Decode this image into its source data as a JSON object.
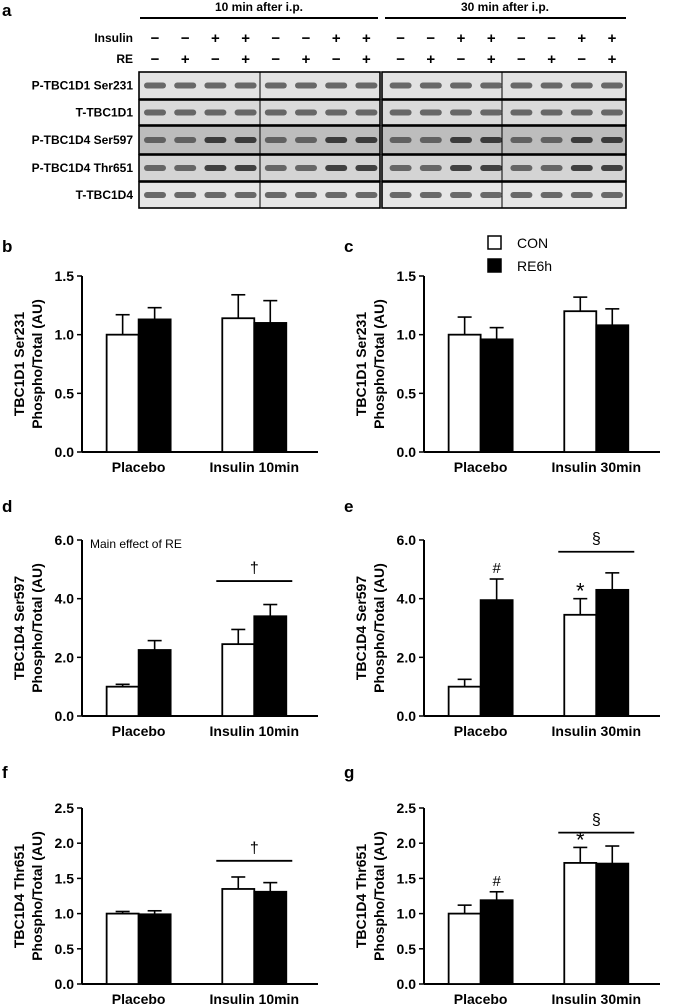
{
  "figure": {
    "panel_letters": [
      "a",
      "b",
      "c",
      "d",
      "e",
      "f",
      "g"
    ],
    "blot": {
      "groups": [
        {
          "label": "10 min after i.p."
        },
        {
          "label": "30 min after i.p."
        }
      ],
      "row_labels": [
        "Insulin",
        "RE"
      ],
      "insulin_signs": [
        "−",
        "−",
        "+",
        "+",
        "−",
        "−",
        "+",
        "+",
        "−",
        "−",
        "+",
        "+",
        "−",
        "−",
        "+",
        "+"
      ],
      "re_signs": [
        "−",
        "+",
        "−",
        "+",
        "−",
        "+",
        "−",
        "+",
        "−",
        "+",
        "−",
        "+",
        "−",
        "+",
        "−",
        "+"
      ],
      "bands": [
        {
          "label": "P-TBC1D1 Ser231",
          "bg": "#e2e2e2"
        },
        {
          "label": "T-TBC1D1",
          "bg": "#dadada"
        },
        {
          "label": "P-TBC1D4 Ser597",
          "bg": "#bdbdbd"
        },
        {
          "label": "P-TBC1D4 Thr651",
          "bg": "#d4d4d4"
        },
        {
          "label": "T-TBC1D4",
          "bg": "#e6e6e6"
        }
      ]
    },
    "legend": [
      {
        "label": "CON",
        "color": "#ffffff"
      },
      {
        "label": "RE6h",
        "color": "#000000"
      }
    ]
  },
  "chart_data": [
    {
      "type": "bar",
      "panel": "b",
      "ylabel": [
        "TBC1D1 Ser231",
        "Phospho/Total (AU)"
      ],
      "ylim": [
        0,
        1.5
      ],
      "yticks": [
        "0.0",
        "0.5",
        "1.0",
        "1.5"
      ],
      "ytick_values": [
        0,
        0.5,
        1.0,
        1.5
      ],
      "categories": [
        "Placebo",
        "Insulin 10min"
      ],
      "series": [
        {
          "name": "CON",
          "values": [
            1.0,
            1.14
          ],
          "errors": [
            0.17,
            0.2
          ]
        },
        {
          "name": "RE6h",
          "values": [
            1.13,
            1.1
          ],
          "errors": [
            0.1,
            0.19
          ]
        }
      ],
      "bar_marks": [],
      "brackets": []
    },
    {
      "type": "bar",
      "panel": "c",
      "ylabel": [
        "TBC1D1 Ser231",
        "Phospho/Total (AU)"
      ],
      "ylim": [
        0,
        1.5
      ],
      "yticks": [
        "0.0",
        "0.5",
        "1.0",
        "1.5"
      ],
      "ytick_values": [
        0,
        0.5,
        1.0,
        1.5
      ],
      "categories": [
        "Placebo",
        "Insulin 30min"
      ],
      "series": [
        {
          "name": "CON",
          "values": [
            1.0,
            1.2
          ],
          "errors": [
            0.15,
            0.12
          ]
        },
        {
          "name": "RE6h",
          "values": [
            0.96,
            1.08
          ],
          "errors": [
            0.1,
            0.14
          ]
        }
      ],
      "bar_marks": [],
      "brackets": []
    },
    {
      "type": "bar",
      "panel": "d",
      "ylabel": [
        "TBC1D4 Ser597",
        "Phospho/Total (AU)"
      ],
      "ylim": [
        0,
        6.0
      ],
      "yticks": [
        "0.0",
        "2.0",
        "4.0",
        "6.0"
      ],
      "ytick_values": [
        0,
        2,
        4,
        6
      ],
      "categories": [
        "Placebo",
        "Insulin 10min"
      ],
      "series": [
        {
          "name": "CON",
          "values": [
            1.0,
            2.45
          ],
          "errors": [
            0.08,
            0.5
          ]
        },
        {
          "name": "RE6h",
          "values": [
            2.25,
            3.4
          ],
          "errors": [
            0.32,
            0.4
          ]
        }
      ],
      "annotation": "Main effect of RE",
      "bar_marks": [],
      "brackets": [
        {
          "group": 1,
          "symbol": "†",
          "value": 4.6
        }
      ]
    },
    {
      "type": "bar",
      "panel": "e",
      "ylabel": [
        "TBC1D4 Ser597",
        "Phospho/Total (AU)"
      ],
      "ylim": [
        0,
        6.0
      ],
      "yticks": [
        "0.0",
        "2.0",
        "4.0",
        "6.0"
      ],
      "ytick_values": [
        0,
        2,
        4,
        6
      ],
      "categories": [
        "Placebo",
        "Insulin 30min"
      ],
      "series": [
        {
          "name": "CON",
          "values": [
            1.0,
            3.45
          ],
          "errors": [
            0.25,
            0.55
          ]
        },
        {
          "name": "RE6h",
          "values": [
            3.95,
            4.3
          ],
          "errors": [
            0.72,
            0.58
          ]
        }
      ],
      "bar_marks": [
        {
          "group": 0,
          "series": 1,
          "symbol": "#"
        },
        {
          "group": 1,
          "series": 0,
          "symbol": "*"
        }
      ],
      "brackets": [
        {
          "group": 1,
          "symbol": "§",
          "value": 5.6
        }
      ]
    },
    {
      "type": "bar",
      "panel": "f",
      "ylabel": [
        "TBC1D4 Thr651",
        "Phospho/Total (AU)"
      ],
      "ylim": [
        0,
        2.5
      ],
      "yticks": [
        "0.0",
        "0.5",
        "1.0",
        "1.5",
        "2.0",
        "2.5"
      ],
      "ytick_values": [
        0,
        0.5,
        1.0,
        1.5,
        2.0,
        2.5
      ],
      "categories": [
        "Placebo",
        "Insulin 10min"
      ],
      "series": [
        {
          "name": "CON",
          "values": [
            1.0,
            1.35
          ],
          "errors": [
            0.03,
            0.17
          ]
        },
        {
          "name": "RE6h",
          "values": [
            0.99,
            1.31
          ],
          "errors": [
            0.05,
            0.13
          ]
        }
      ],
      "bar_marks": [],
      "brackets": [
        {
          "group": 1,
          "symbol": "†",
          "value": 1.75
        }
      ]
    },
    {
      "type": "bar",
      "panel": "g",
      "ylabel": [
        "TBC1D4 Thr651",
        "Phospho/Total (AU)"
      ],
      "ylim": [
        0,
        2.5
      ],
      "yticks": [
        "0.0",
        "0.5",
        "1.0",
        "1.5",
        "2.0",
        "2.5"
      ],
      "ytick_values": [
        0,
        0.5,
        1.0,
        1.5,
        2.0,
        2.5
      ],
      "categories": [
        "Placebo",
        "Insulin 30min"
      ],
      "series": [
        {
          "name": "CON",
          "values": [
            1.0,
            1.72
          ],
          "errors": [
            0.12,
            0.22
          ]
        },
        {
          "name": "RE6h",
          "values": [
            1.19,
            1.71
          ],
          "errors": [
            0.12,
            0.25
          ]
        }
      ],
      "bar_marks": [
        {
          "group": 0,
          "series": 1,
          "symbol": "#"
        },
        {
          "group": 1,
          "series": 0,
          "symbol": "*"
        }
      ],
      "brackets": [
        {
          "group": 1,
          "symbol": "§",
          "value": 2.15
        }
      ]
    }
  ]
}
